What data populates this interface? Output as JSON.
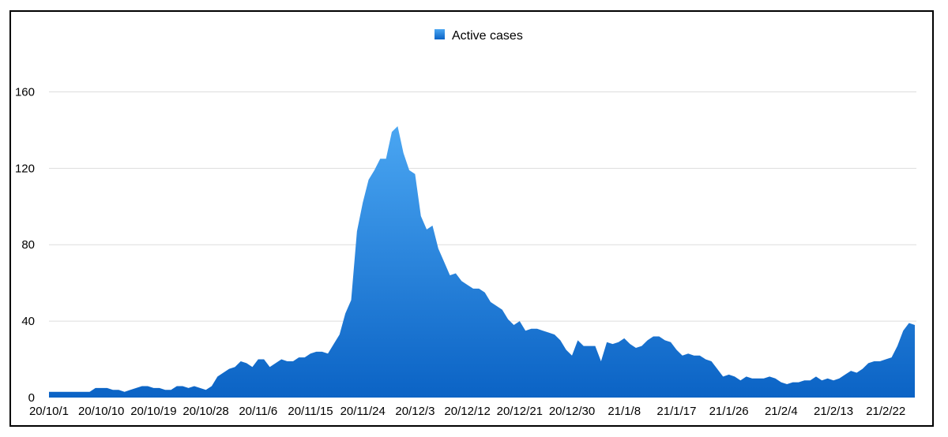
{
  "chart_data": {
    "type": "area",
    "title": "",
    "xlabel": "",
    "ylabel": "",
    "ylim": [
      0,
      180
    ],
    "yticks": [
      0,
      40,
      80,
      120,
      160
    ],
    "grid": true,
    "legend_position": "top-center",
    "x_tick_labels": [
      "20/10/1",
      "20/10/10",
      "20/10/19",
      "20/10/28",
      "20/11/6",
      "20/11/15",
      "20/11/24",
      "20/12/3",
      "20/12/12",
      "20/12/21",
      "20/12/30",
      "21/1/8",
      "21/1/17",
      "21/1/26",
      "21/2/4",
      "21/2/13",
      "21/2/22"
    ],
    "x_tick_step_days": 9,
    "colors": {
      "fill_top": "#4aa6f2",
      "fill_bottom": "#0b63c5",
      "grid": "#dddddd"
    },
    "series": [
      {
        "name": "Active cases",
        "values": [
          3,
          3,
          3,
          3,
          3,
          3,
          3,
          3,
          5,
          5,
          5,
          4,
          4,
          3,
          4,
          5,
          6,
          6,
          5,
          5,
          4,
          4,
          6,
          6,
          5,
          6,
          5,
          4,
          6,
          11,
          13,
          15,
          16,
          19,
          18,
          16,
          20,
          20,
          16,
          18,
          20,
          19,
          19,
          21,
          21,
          23,
          24,
          24,
          23,
          28,
          33,
          44,
          51,
          87,
          102,
          114,
          119,
          125,
          125,
          139,
          142,
          128,
          119,
          117,
          95,
          88,
          90,
          78,
          71,
          64,
          65,
          61,
          59,
          57,
          57,
          55,
          50,
          48,
          46,
          41,
          38,
          40,
          35,
          36,
          36,
          35,
          34,
          33,
          30,
          25,
          22,
          30,
          27,
          27,
          27,
          19,
          29,
          28,
          29,
          31,
          28,
          26,
          27,
          30,
          32,
          32,
          30,
          29,
          25,
          22,
          23,
          22,
          22,
          20,
          19,
          15,
          11,
          12,
          11,
          9,
          11,
          10,
          10,
          10,
          11,
          10,
          8,
          7,
          8,
          8,
          9,
          9,
          11,
          9,
          10,
          9,
          10,
          12,
          14,
          13,
          15,
          18,
          19,
          19,
          20,
          21,
          27,
          35,
          39,
          38
        ]
      }
    ]
  }
}
